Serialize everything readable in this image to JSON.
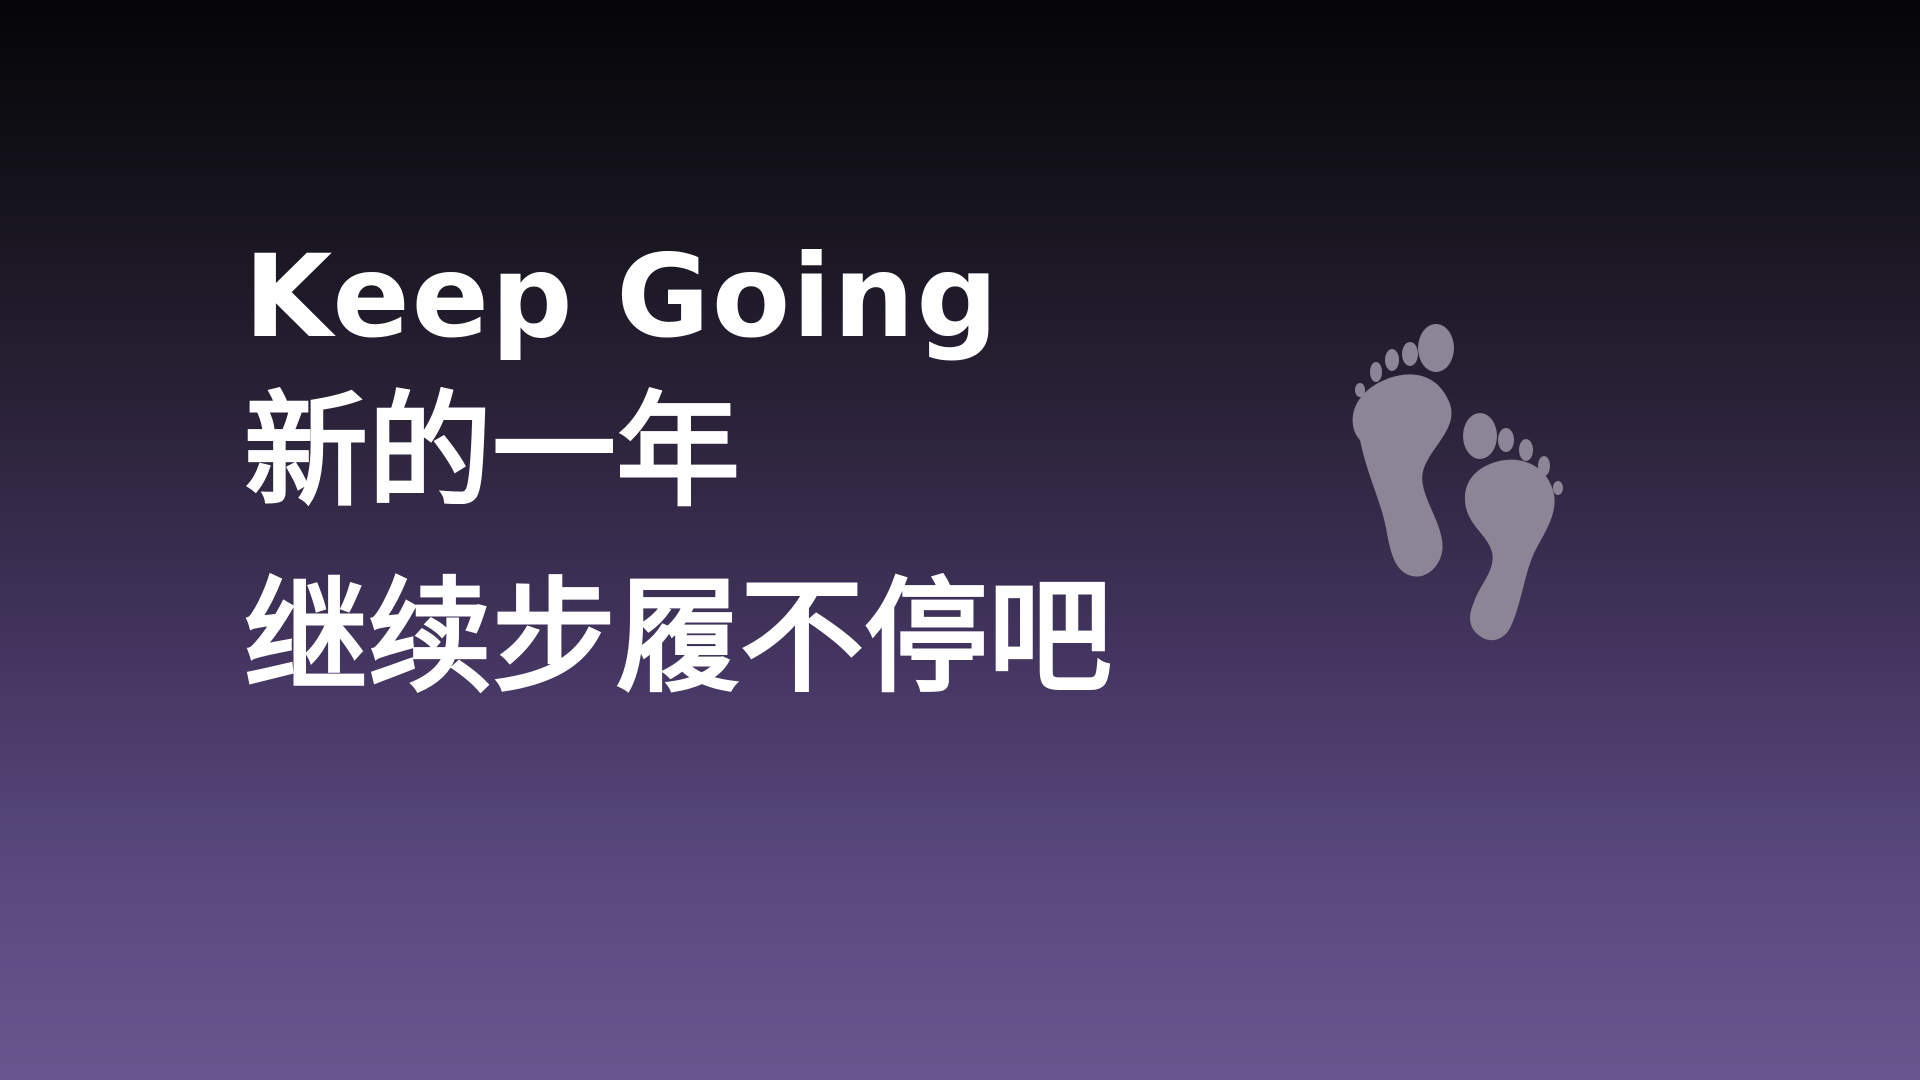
{
  "slide": {
    "title_en": "Keep Going",
    "line_cn_1": "新的一年",
    "line_cn_2": "继续步履不停吧"
  },
  "decor": {
    "icon": "footprints-icon",
    "color": "#8b8595"
  },
  "colors": {
    "background_top": "#050507",
    "background_bottom": "#69568e",
    "text": "#ffffff"
  }
}
